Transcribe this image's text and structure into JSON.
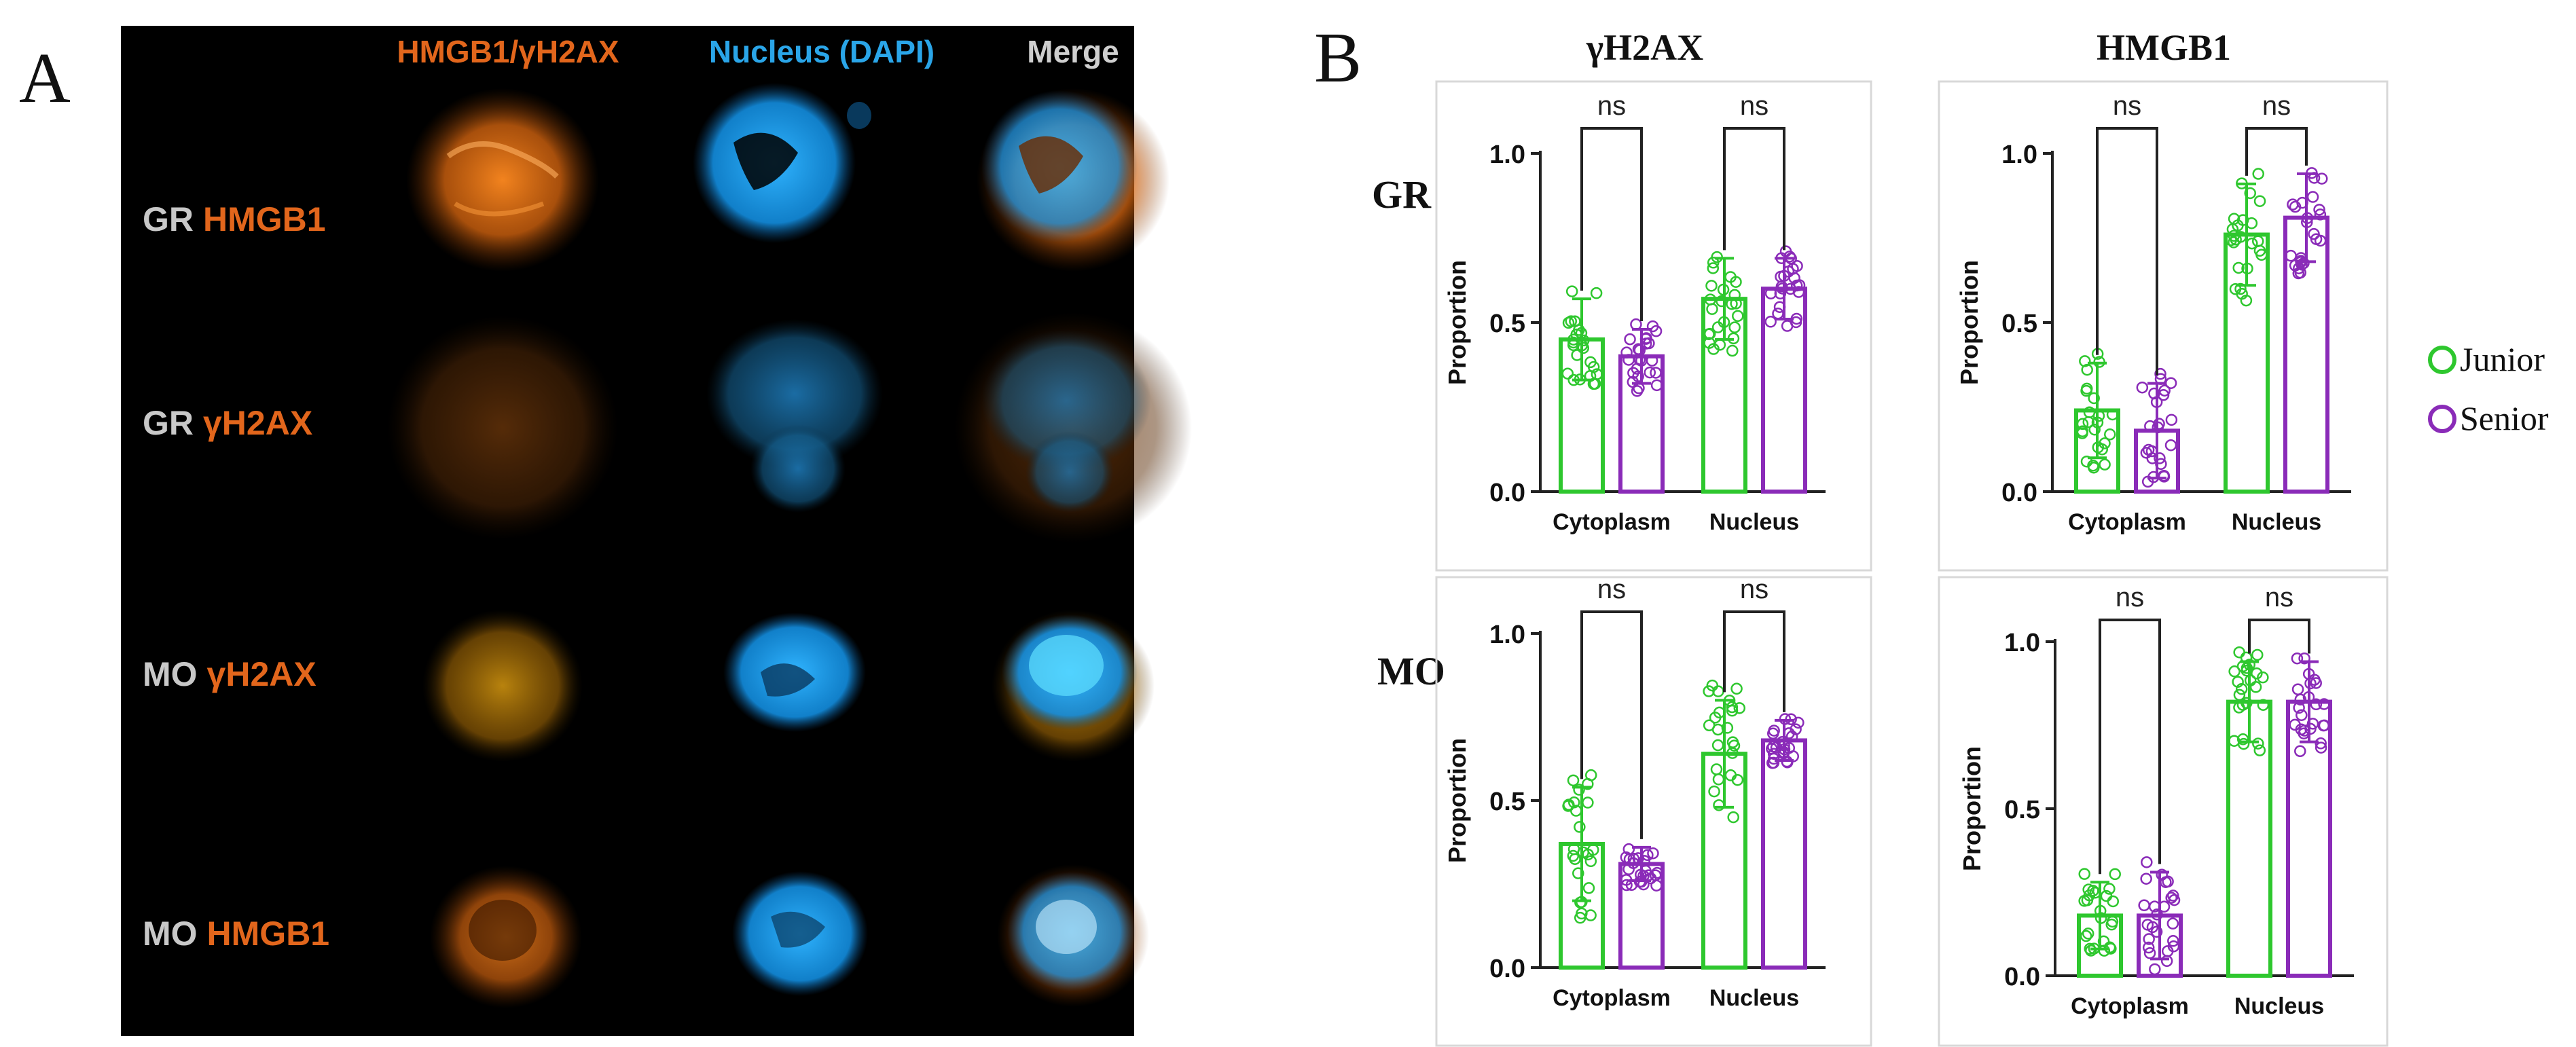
{
  "panel_a": {
    "letter": "A",
    "column_headers": [
      {
        "text": "HMGB1/γH2AX",
        "color": "#e2661c"
      },
      {
        "text": "Nucleus (DAPI)",
        "color": "#2aa5e8"
      },
      {
        "text": "Merge",
        "color": "#cfcfcf"
      }
    ],
    "rows": [
      {
        "cell": "GR",
        "marker": "HMGB1",
        "glow": "#ff7a12"
      },
      {
        "cell": "GR",
        "marker": "γH2AX",
        "glow": "#b05a10"
      },
      {
        "cell": "MO",
        "marker": "γH2AX",
        "glow": "#d9940d"
      },
      {
        "cell": "MO",
        "marker": "HMGB1",
        "glow": "#ff7a12"
      }
    ],
    "colors": {
      "background": "#000000",
      "cell_label": "#c8c8c8",
      "marker_label": "#e2661c",
      "dapi": "#19a3ff"
    }
  },
  "panel_b": {
    "letter": "B",
    "column_titles": [
      "γH2AX",
      "HMGB1"
    ],
    "row_labels": [
      "GR",
      "MO"
    ],
    "legend": [
      {
        "name": "Junior",
        "color": "#2ec72e"
      },
      {
        "name": "Senior",
        "color": "#8a2bb8"
      }
    ]
  },
  "chart_data": [
    {
      "type": "bar",
      "panel": "GR-γH2AX",
      "categories": [
        "Cytoplasm",
        "Nucleus"
      ],
      "series": [
        {
          "name": "Junior",
          "values": [
            0.45,
            0.57
          ],
          "sd": [
            0.12,
            0.12
          ]
        },
        {
          "name": "Senior",
          "values": [
            0.4,
            0.6
          ],
          "sd": [
            0.08,
            0.09
          ]
        }
      ],
      "ylabel": "Proportion",
      "ylim": [
        0,
        1.0
      ],
      "yticks": [
        "0.0",
        "0.5",
        "1.0"
      ],
      "significance": [
        "ns",
        "ns"
      ]
    },
    {
      "type": "bar",
      "panel": "GR-HMGB1",
      "categories": [
        "Cytoplasm",
        "Nucleus"
      ],
      "series": [
        {
          "name": "Junior",
          "values": [
            0.24,
            0.76
          ],
          "sd": [
            0.14,
            0.15
          ]
        },
        {
          "name": "Senior",
          "values": [
            0.18,
            0.81
          ],
          "sd": [
            0.14,
            0.13
          ]
        }
      ],
      "ylabel": "Proportion",
      "ylim": [
        0,
        1.0
      ],
      "yticks": [
        "0.0",
        "0.5",
        "1.0"
      ],
      "significance": [
        "ns",
        "ns"
      ]
    },
    {
      "type": "bar",
      "panel": "MO-γH2AX",
      "categories": [
        "Cytoplasm",
        "Nucleus"
      ],
      "series": [
        {
          "name": "Junior",
          "values": [
            0.37,
            0.64
          ],
          "sd": [
            0.17,
            0.16
          ]
        },
        {
          "name": "Senior",
          "values": [
            0.31,
            0.68
          ],
          "sd": [
            0.05,
            0.06
          ]
        }
      ],
      "ylabel": "Proportion",
      "ylim": [
        0,
        1.0
      ],
      "yticks": [
        "0.0",
        "0.5",
        "1.0"
      ],
      "significance": [
        "ns",
        "ns"
      ]
    },
    {
      "type": "bar",
      "panel": "MO-HMGB1",
      "categories": [
        "Cytoplasm",
        "Nucleus"
      ],
      "series": [
        {
          "name": "Junior",
          "values": [
            0.18,
            0.82
          ],
          "sd": [
            0.1,
            0.12
          ]
        },
        {
          "name": "Senior",
          "values": [
            0.18,
            0.82
          ],
          "sd": [
            0.13,
            0.12
          ]
        }
      ],
      "ylabel": "Proportion",
      "ylim": [
        0,
        1.0
      ],
      "yticks": [
        "0.0",
        "0.5",
        "1.0"
      ],
      "significance": [
        "ns",
        "ns"
      ]
    }
  ]
}
